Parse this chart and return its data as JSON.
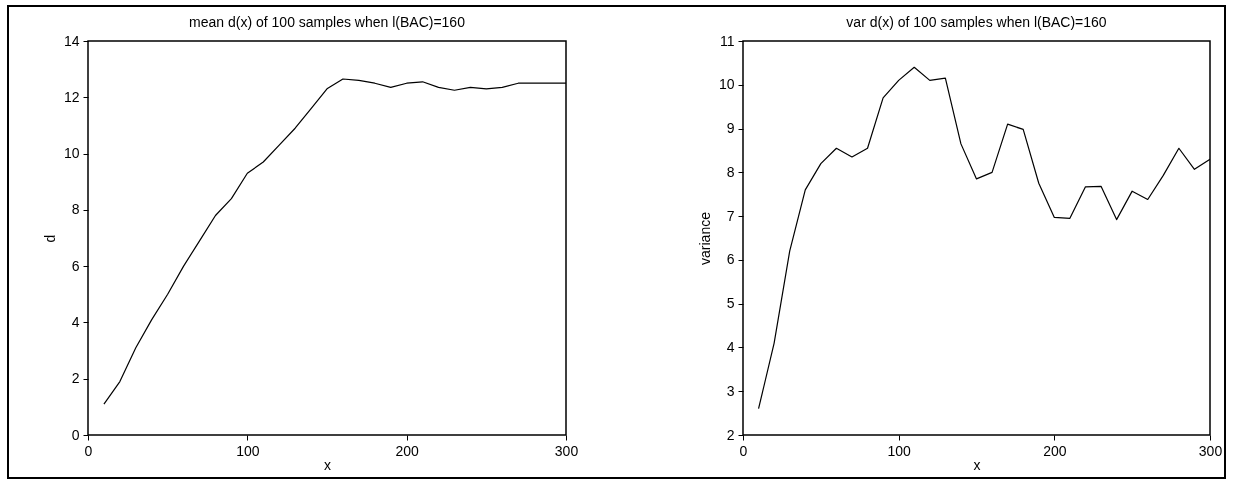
{
  "chart_data": [
    {
      "type": "line",
      "title": "mean d(x) of 100 samples when l(BAC)=160",
      "xlabel": "x",
      "ylabel": "d",
      "x": [
        10,
        20,
        30,
        40,
        50,
        60,
        70,
        80,
        90,
        100,
        110,
        120,
        130,
        140,
        150,
        160,
        170,
        180,
        190,
        200,
        210,
        220,
        230,
        240,
        250,
        260,
        270,
        280,
        290,
        300
      ],
      "series": [
        {
          "color": "#000000",
          "values": [
            1.1,
            1.9,
            3.1,
            4.1,
            5.0,
            6.0,
            6.9,
            7.8,
            8.4,
            9.3,
            9.7,
            10.3,
            10.9,
            11.6,
            12.3,
            12.65,
            12.6,
            12.5,
            12.35,
            12.5,
            12.55,
            12.35,
            12.25,
            12.35,
            12.3,
            12.35,
            12.5,
            12.5,
            12.5,
            12.5
          ]
        }
      ],
      "xlim": [
        0,
        300
      ],
      "xticks": [
        0,
        100,
        200,
        300
      ],
      "ylim": [
        0,
        14
      ],
      "yticks": [
        0,
        2,
        4,
        6,
        8,
        10,
        12,
        14
      ]
    },
    {
      "type": "line",
      "title": "var d(x) of 100 samples when l(BAC)=160",
      "xlabel": "x",
      "ylabel": "variance",
      "x": [
        10,
        20,
        30,
        40,
        50,
        60,
        70,
        80,
        90,
        100,
        110,
        120,
        130,
        140,
        150,
        160,
        170,
        180,
        190,
        200,
        210,
        220,
        230,
        240,
        250,
        260,
        270,
        280,
        290,
        300
      ],
      "series": [
        {
          "color": "#000000",
          "values": [
            2.6,
            4.1,
            6.2,
            7.6,
            8.2,
            8.55,
            8.35,
            8.55,
            9.7,
            10.1,
            10.4,
            10.1,
            10.15,
            8.65,
            7.85,
            8.0,
            9.1,
            8.98,
            7.75,
            6.97,
            6.95,
            7.67,
            7.68,
            6.92,
            7.57,
            7.38,
            7.93,
            8.55,
            8.07,
            8.3
          ]
        }
      ],
      "xlim": [
        0,
        300
      ],
      "xticks": [
        0,
        100,
        200,
        300
      ],
      "ylim": [
        2,
        11
      ],
      "yticks": [
        2,
        3,
        4,
        5,
        6,
        7,
        8,
        9,
        10,
        11
      ]
    }
  ]
}
